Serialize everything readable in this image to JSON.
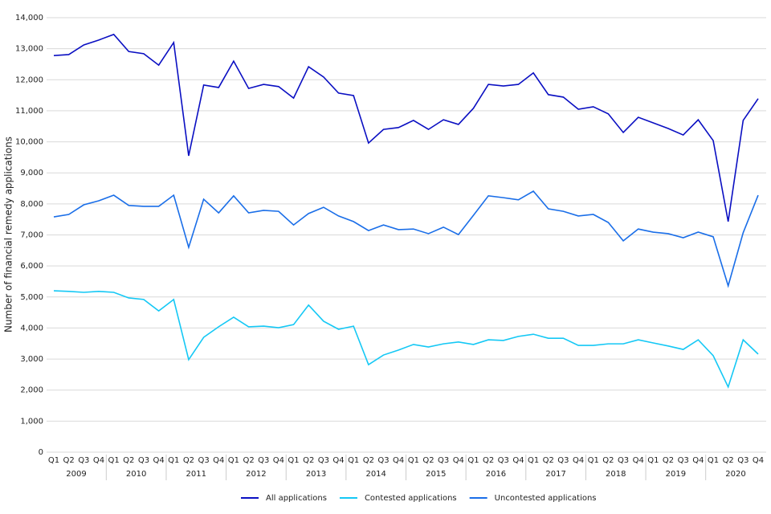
{
  "chart_data": {
    "type": "line",
    "y_label": "Number of financial remedy applications",
    "categories": [
      "Q1",
      "Q2",
      "Q3",
      "Q4",
      "Q1",
      "Q2",
      "Q3",
      "Q4",
      "Q1",
      "Q2",
      "Q3",
      "Q4",
      "Q1",
      "Q2",
      "Q3",
      "Q4",
      "Q1",
      "Q2",
      "Q3",
      "Q4",
      "Q1",
      "Q2",
      "Q3",
      "Q4",
      "Q1",
      "Q2",
      "Q3",
      "Q4",
      "Q1",
      "Q2",
      "Q3",
      "Q4",
      "Q1",
      "Q2",
      "Q3",
      "Q4",
      "Q1",
      "Q2",
      "Q3",
      "Q4",
      "Q1",
      "Q2",
      "Q3",
      "Q4",
      "Q1",
      "Q2",
      "Q3",
      "Q4"
    ],
    "years": [
      "2009",
      "2010",
      "2011",
      "2012",
      "2013",
      "2014",
      "2015",
      "2016",
      "2017",
      "2018",
      "2019",
      "2020"
    ],
    "series": [
      {
        "name": "All applications",
        "color": "#0a0fc2",
        "values": [
          12780,
          12810,
          13120,
          13280,
          13460,
          12910,
          12840,
          12470,
          13200,
          9550,
          11830,
          11750,
          12600,
          11720,
          11850,
          11780,
          11410,
          12420,
          12090,
          11570,
          11490,
          9960,
          10400,
          10460,
          10690,
          10400,
          10710,
          10560,
          11080,
          11850,
          11800,
          11850,
          12220,
          11520,
          11440,
          11050,
          11130,
          10900,
          10300,
          10790,
          10610,
          10430,
          10220,
          10710,
          10040,
          7430,
          10690,
          11390
        ]
      },
      {
        "name": "Contested applications",
        "color": "#14c8f5",
        "values": [
          5200,
          5180,
          5150,
          5180,
          5150,
          4970,
          4920,
          4550,
          4920,
          2980,
          3700,
          4040,
          4350,
          4040,
          4060,
          4010,
          4110,
          4740,
          4220,
          3960,
          4060,
          2820,
          3130,
          3290,
          3470,
          3390,
          3490,
          3550,
          3470,
          3620,
          3600,
          3730,
          3800,
          3670,
          3670,
          3440,
          3440,
          3490,
          3490,
          3620,
          3520,
          3420,
          3310,
          3620,
          3110,
          2100,
          3620,
          3160
        ]
      },
      {
        "name": "Uncontested applications",
        "color": "#1a6ee8",
        "values": [
          7580,
          7660,
          7970,
          8100,
          8280,
          7950,
          7920,
          7920,
          8280,
          6600,
          8150,
          7710,
          8260,
          7710,
          7790,
          7760,
          7320,
          7690,
          7890,
          7610,
          7430,
          7140,
          7320,
          7170,
          7190,
          7040,
          7250,
          7010,
          7630,
          8260,
          8200,
          8130,
          8410,
          7840,
          7760,
          7610,
          7660,
          7400,
          6810,
          7190,
          7090,
          7040,
          6910,
          7090,
          6940,
          5360,
          7070,
          8280
        ]
      }
    ],
    "ylim": [
      0,
      14000
    ],
    "yticks": [
      0,
      {
        "value": 1000,
        "label": "1,000"
      },
      {
        "value": 2000,
        "label": "2,000"
      },
      {
        "value": 3000,
        "label": "3,000"
      },
      {
        "value": 4000,
        "label": "4,000"
      },
      {
        "value": 5000,
        "label": "5,000"
      },
      {
        "value": 6000,
        "label": "6,000"
      },
      {
        "value": 7000,
        "label": "7,000"
      },
      {
        "value": 8000,
        "label": "8,000"
      },
      {
        "value": 9000,
        "label": "9,000"
      },
      {
        "value": 10000,
        "label": "10,000"
      },
      {
        "value": 11000,
        "label": "11,000"
      },
      {
        "value": 12000,
        "label": "12,000"
      },
      {
        "value": 13000,
        "label": "13,000"
      },
      {
        "value": 14000,
        "label": "14,000"
      }
    ],
    "grid": true,
    "legend": "bottom"
  }
}
